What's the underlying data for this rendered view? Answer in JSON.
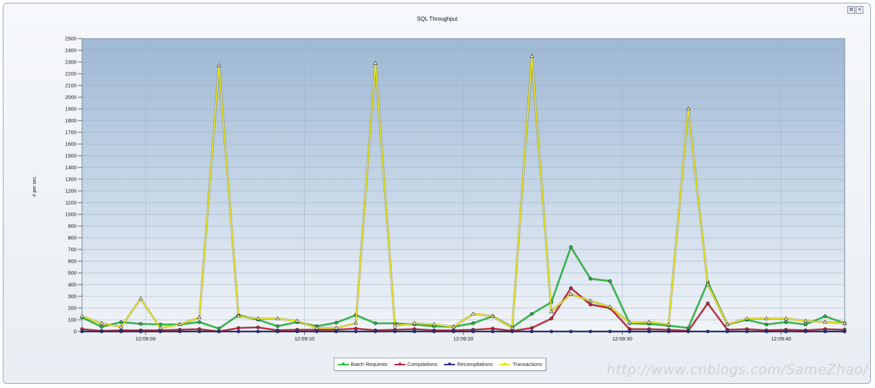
{
  "window": {
    "restore_glyph": "⧉",
    "close_glyph": "✕"
  },
  "watermark": "http://www.cnblogs.com/SameZhao/",
  "chart_data": {
    "type": "line",
    "title": "SQL Throughput",
    "xlabel": "",
    "ylabel": "# per sec.",
    "ylim": [
      0,
      2500
    ],
    "yticks": [
      0,
      100,
      200,
      300,
      400,
      500,
      600,
      700,
      800,
      900,
      1000,
      1100,
      1200,
      1300,
      1400,
      1500,
      1600,
      1700,
      1800,
      1900,
      2000,
      2100,
      2200,
      2300,
      2400,
      2500
    ],
    "x_time_start": "12:08:56",
    "x_end_offset": 48,
    "xticks": [
      {
        "at": 4,
        "label": "12:09:00"
      },
      {
        "at": 14,
        "label": "12:09:10"
      },
      {
        "at": 24,
        "label": "12:09:20"
      },
      {
        "at": 34,
        "label": "12:09:30"
      },
      {
        "at": 44,
        "label": "12:09:40"
      }
    ],
    "grid": true,
    "legend": "bottom-center",
    "series": [
      {
        "name": "Batch Requests",
        "color": "#22c03a",
        "marker": "circle",
        "values": [
          120,
          40,
          80,
          65,
          60,
          60,
          80,
          25,
          140,
          100,
          45,
          80,
          45,
          75,
          140,
          70,
          70,
          60,
          45,
          40,
          70,
          130,
          35,
          150,
          250,
          720,
          450,
          430,
          70,
          65,
          50,
          30,
          420,
          60,
          100,
          60,
          80,
          60,
          130,
          70
        ]
      },
      {
        "name": "Compilations",
        "color": "#cc2030",
        "marker": "circle",
        "values": [
          20,
          5,
          10,
          10,
          10,
          15,
          20,
          0,
          30,
          35,
          10,
          15,
          15,
          15,
          25,
          10,
          15,
          20,
          10,
          10,
          15,
          25,
          5,
          30,
          110,
          370,
          230,
          200,
          20,
          20,
          15,
          5,
          240,
          15,
          20,
          10,
          15,
          10,
          20,
          15
        ]
      },
      {
        "name": "Recompilations",
        "color": "#1c2f9e",
        "marker": "circle",
        "values": [
          0,
          0,
          0,
          0,
          0,
          0,
          0,
          0,
          0,
          0,
          0,
          0,
          0,
          0,
          0,
          0,
          0,
          0,
          0,
          0,
          0,
          0,
          0,
          0,
          0,
          0,
          0,
          0,
          0,
          0,
          0,
          0,
          0,
          0,
          0,
          0,
          0,
          0,
          0,
          0
        ]
      },
      {
        "name": "Transactions",
        "color": "#e8e21a",
        "marker": "triangle",
        "values": [
          130,
          70,
          40,
          280,
          30,
          60,
          120,
          2270,
          130,
          110,
          110,
          90,
          30,
          30,
          70,
          2290,
          50,
          70,
          60,
          40,
          150,
          130,
          30,
          2350,
          170,
          320,
          260,
          210,
          75,
          80,
          60,
          1900,
          400,
          60,
          110,
          110,
          110,
          90,
          80,
          70
        ]
      }
    ]
  }
}
